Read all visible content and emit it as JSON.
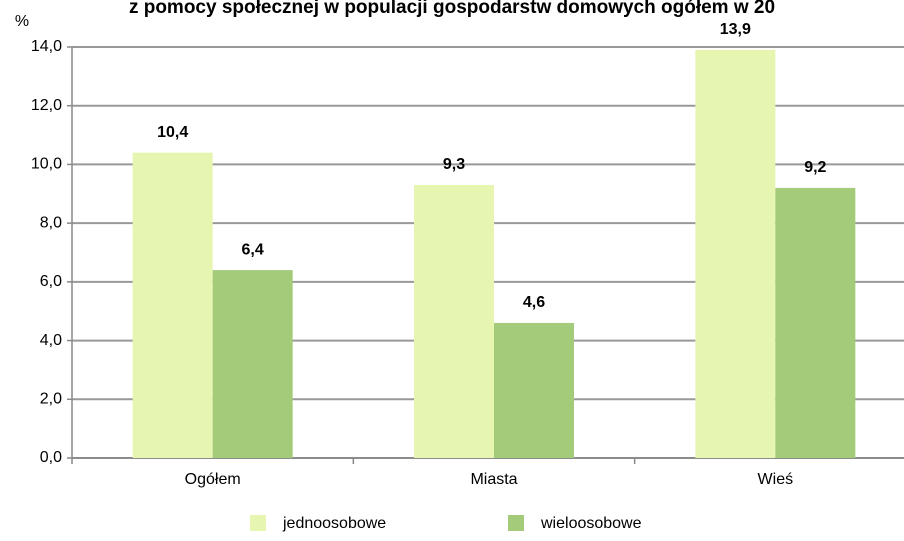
{
  "chart_data": {
    "type": "bar",
    "title": "z pomocy społecznej w populacji gospodarstw domowych ogółem w 20",
    "y_label": "%",
    "categories": [
      "Ogółem",
      "Miasta",
      "Wieś"
    ],
    "series": [
      {
        "name": "jednoosobowe",
        "color": "#e6f5b0",
        "values": [
          10.4,
          9.3,
          13.9
        ],
        "value_labels": [
          "10,4",
          "9,3",
          "13,9"
        ]
      },
      {
        "name": "wieloosobowe",
        "color": "#a3cb79",
        "values": [
          6.4,
          4.6,
          9.2
        ],
        "value_labels": [
          "6,4",
          "4,6",
          "9,2"
        ]
      }
    ],
    "ylim": [
      0,
      14
    ],
    "yticks": [
      {
        "value": 0,
        "label": "0,0"
      },
      {
        "value": 2,
        "label": "2,0"
      },
      {
        "value": 4,
        "label": "4,0"
      },
      {
        "value": 6,
        "label": "6,0"
      },
      {
        "value": 8,
        "label": "8,0"
      },
      {
        "value": 10,
        "label": "10,0"
      },
      {
        "value": 12,
        "label": "12,0"
      },
      {
        "value": 14,
        "label": "14,0"
      }
    ],
    "grid": true
  }
}
